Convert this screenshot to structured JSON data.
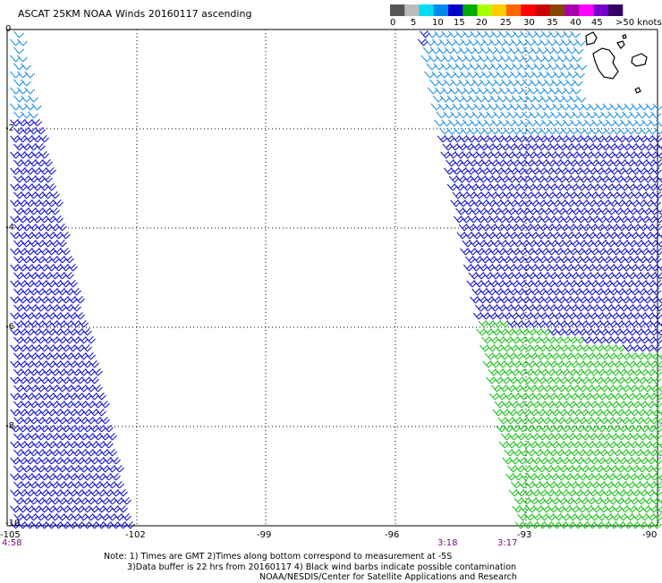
{
  "title": "ASCAT 25KM NOAA Winds 20160117 ascending",
  "legend": {
    "labels": [
      "0",
      "5",
      "10",
      "15",
      "20",
      "25",
      "30",
      "35",
      "40",
      "45",
      ">50 knots"
    ],
    "colors": [
      "#555555",
      "#bbbbbb",
      "#00ddee",
      "#0088ee",
      "#0000cc",
      "#00aa00",
      "#aaff00",
      "#ffcc00",
      "#ff6600",
      "#ff0000",
      "#cc0000",
      "#884400",
      "#aa00aa",
      "#ff00ff",
      "#7700cc",
      "#330066"
    ]
  },
  "axes": {
    "lat_labels": [
      "0",
      "-2",
      "-4",
      "-6",
      "-8",
      "-10"
    ],
    "lon_labels": [
      "-105",
      "-102",
      "-99",
      "-96",
      "-93",
      "-90"
    ],
    "lon_range": [
      -105,
      -90
    ],
    "lat_range": [
      0,
      -10
    ]
  },
  "pass_times": [
    "4:58",
    "3:18",
    "3:17"
  ],
  "notes": {
    "line1": "Note: 1) Times are GMT 2)Times along bottom correspond to measurement at -5S",
    "line2": "3)Data buffer is 22 hrs from 20160117 4) Black wind barbs indicate possible contamination",
    "line3": "NOAA/NESDIS/Center for Satellite Applications and Research"
  },
  "colors": {
    "barb_light": "#1a8fe6",
    "barb_blue": "#1010c8",
    "barb_green": "#19c219",
    "grid": "#000000",
    "time_label": "#7a0a7a"
  }
}
